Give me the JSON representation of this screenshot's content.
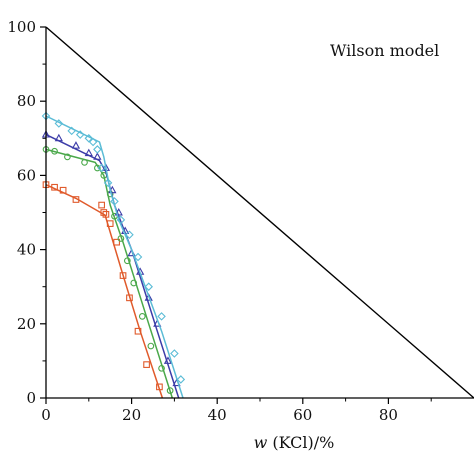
{
  "chart_data": {
    "type": "line",
    "title": "",
    "xlabel": "w (KCl)/%",
    "xlabel_italic": "w",
    "xlabel_rest": " (KCl)/%",
    "ylabel": "",
    "xlim": [
      0,
      100
    ],
    "ylim": [
      0,
      100
    ],
    "x_ticks": [
      0,
      20,
      40,
      60,
      80
    ],
    "y_ticks": [
      0,
      20,
      40,
      60,
      80,
      100
    ],
    "grid": false,
    "annotation": "Wilson model",
    "reference_line": {
      "x": [
        0,
        100
      ],
      "y": [
        100,
        0
      ],
      "color": "#000000"
    },
    "series": [
      {
        "color": "#e05a2b",
        "marker": "square",
        "line_x": [
          0,
          7,
          13.8,
          17.5,
          22,
          27.2
        ],
        "line_y": [
          57.5,
          53.8,
          49.3,
          35,
          18,
          0
        ],
        "points_x": [
          0,
          2,
          4,
          7,
          13,
          13.5,
          14,
          15,
          16.5,
          18,
          19.5,
          21.5,
          23.5,
          26.5
        ],
        "points_y": [
          57.5,
          56.8,
          56,
          53.5,
          52,
          50,
          49.5,
          47,
          42,
          33,
          27,
          18,
          9,
          3
        ]
      },
      {
        "color": "#4aa84a",
        "marker": "circle",
        "line_x": [
          0,
          11.5,
          13.5,
          15,
          18,
          24,
          29.5
        ],
        "line_y": [
          67,
          63.5,
          60,
          52,
          42,
          20,
          0
        ],
        "points_x": [
          0,
          2,
          5,
          9,
          12,
          13.5,
          15,
          16,
          17.5,
          19,
          20.5,
          22.5,
          24.5,
          27,
          29
        ],
        "points_y": [
          67,
          66.5,
          65,
          63.5,
          62,
          60,
          55,
          49,
          43,
          37,
          31,
          22,
          14,
          8,
          2
        ]
      },
      {
        "color": "#3c3ca8",
        "marker": "triangle",
        "line_x": [
          0,
          12.5,
          14,
          16,
          20,
          26,
          31
        ],
        "line_y": [
          71,
          64,
          61,
          52,
          40,
          18,
          0
        ],
        "points_x": [
          0,
          3,
          7,
          10,
          12,
          14,
          15.5,
          17,
          18.5,
          20,
          22,
          24,
          26,
          28.5,
          30.5
        ],
        "points_y": [
          71,
          70,
          68,
          66,
          65,
          62,
          56,
          50,
          45,
          39,
          34,
          27,
          20,
          10,
          4
        ]
      },
      {
        "color": "#5bbcd6",
        "marker": "diamond",
        "line_x": [
          0,
          12.5,
          13.5,
          15,
          17,
          20,
          27,
          32
        ],
        "line_y": [
          76,
          69,
          65,
          56,
          48,
          40,
          18,
          0
        ],
        "points_x": [
          0,
          3,
          6,
          8,
          10,
          11,
          12,
          13,
          14.5,
          16,
          17.5,
          19.5,
          21.5,
          24,
          27,
          30,
          31.5
        ],
        "points_y": [
          76,
          74,
          72,
          71,
          70,
          69,
          67,
          62,
          58,
          53,
          48,
          44,
          38,
          30,
          22,
          12,
          5
        ]
      }
    ]
  }
}
